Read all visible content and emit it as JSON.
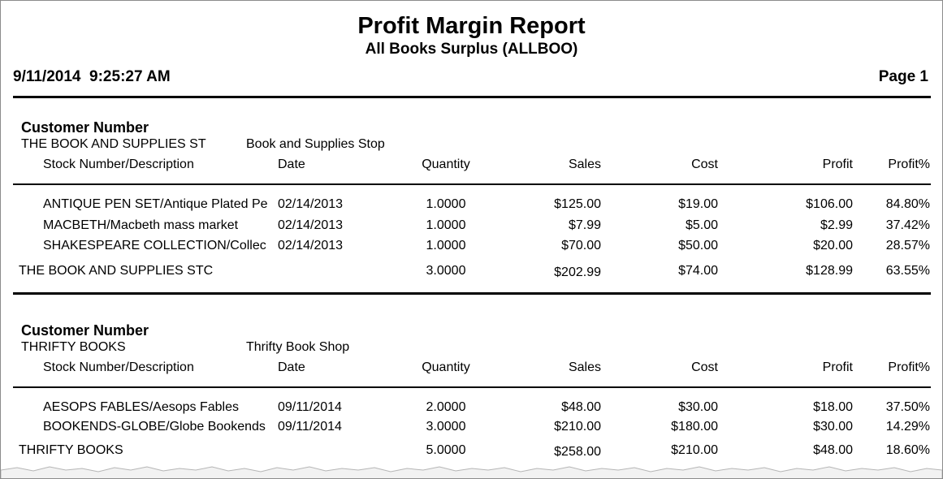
{
  "header": {
    "title": "Profit Margin Report",
    "subtitle": "All Books Surplus (ALLBOO)",
    "date": "9/11/2014  9:25:27 AM",
    "page": "Page 1"
  },
  "sections": [
    {
      "group_label": "Customer Number",
      "customer_id": "THE BOOK AND SUPPLIES ST",
      "customer_name": "Book and Supplies Stop",
      "columns": [
        "Stock Number/Description",
        "Date",
        "Quantity",
        "Sales",
        "Cost",
        "Profit",
        "Profit%"
      ],
      "rows": [
        [
          "ANTIQUE PEN SET/Antique Plated Pe",
          "02/14/2013",
          "1.0000",
          "$125.00",
          "$19.00",
          "$106.00",
          "84.80%"
        ],
        [
          "MACBETH/Macbeth mass market",
          "02/14/2013",
          "1.0000",
          "$7.99",
          "$5.00",
          "$2.99",
          "37.42%"
        ],
        [
          "SHAKESPEARE COLLECTION/Collec",
          "02/14/2013",
          "1.0000",
          "$70.00",
          "$50.00",
          "$20.00",
          "28.57%"
        ]
      ],
      "total": [
        "THE BOOK AND SUPPLIES STC",
        "3.0000",
        "$202.99",
        "$74.00",
        "$128.99",
        "63.55%"
      ]
    },
    {
      "group_label": "Customer Number",
      "customer_id": "THRIFTY BOOKS",
      "customer_name": "Thrifty Book Shop",
      "columns": [
        "Stock Number/Description",
        "Date",
        "Quantity",
        "Sales",
        "Cost",
        "Profit",
        "Profit%"
      ],
      "rows": [
        [
          "AESOPS FABLES/Aesops Fables",
          "09/11/2014",
          "2.0000",
          "$48.00",
          "$30.00",
          "$18.00",
          "37.50%"
        ],
        [
          "BOOKENDS-GLOBE/Globe Bookends",
          "09/11/2014",
          "3.0000",
          "$210.00",
          "$180.00",
          "$30.00",
          "14.29%"
        ]
      ],
      "total": [
        "THRIFTY BOOKS",
        "5.0000",
        "$258.00",
        "$210.00",
        "$48.00",
        "18.60%"
      ]
    }
  ]
}
